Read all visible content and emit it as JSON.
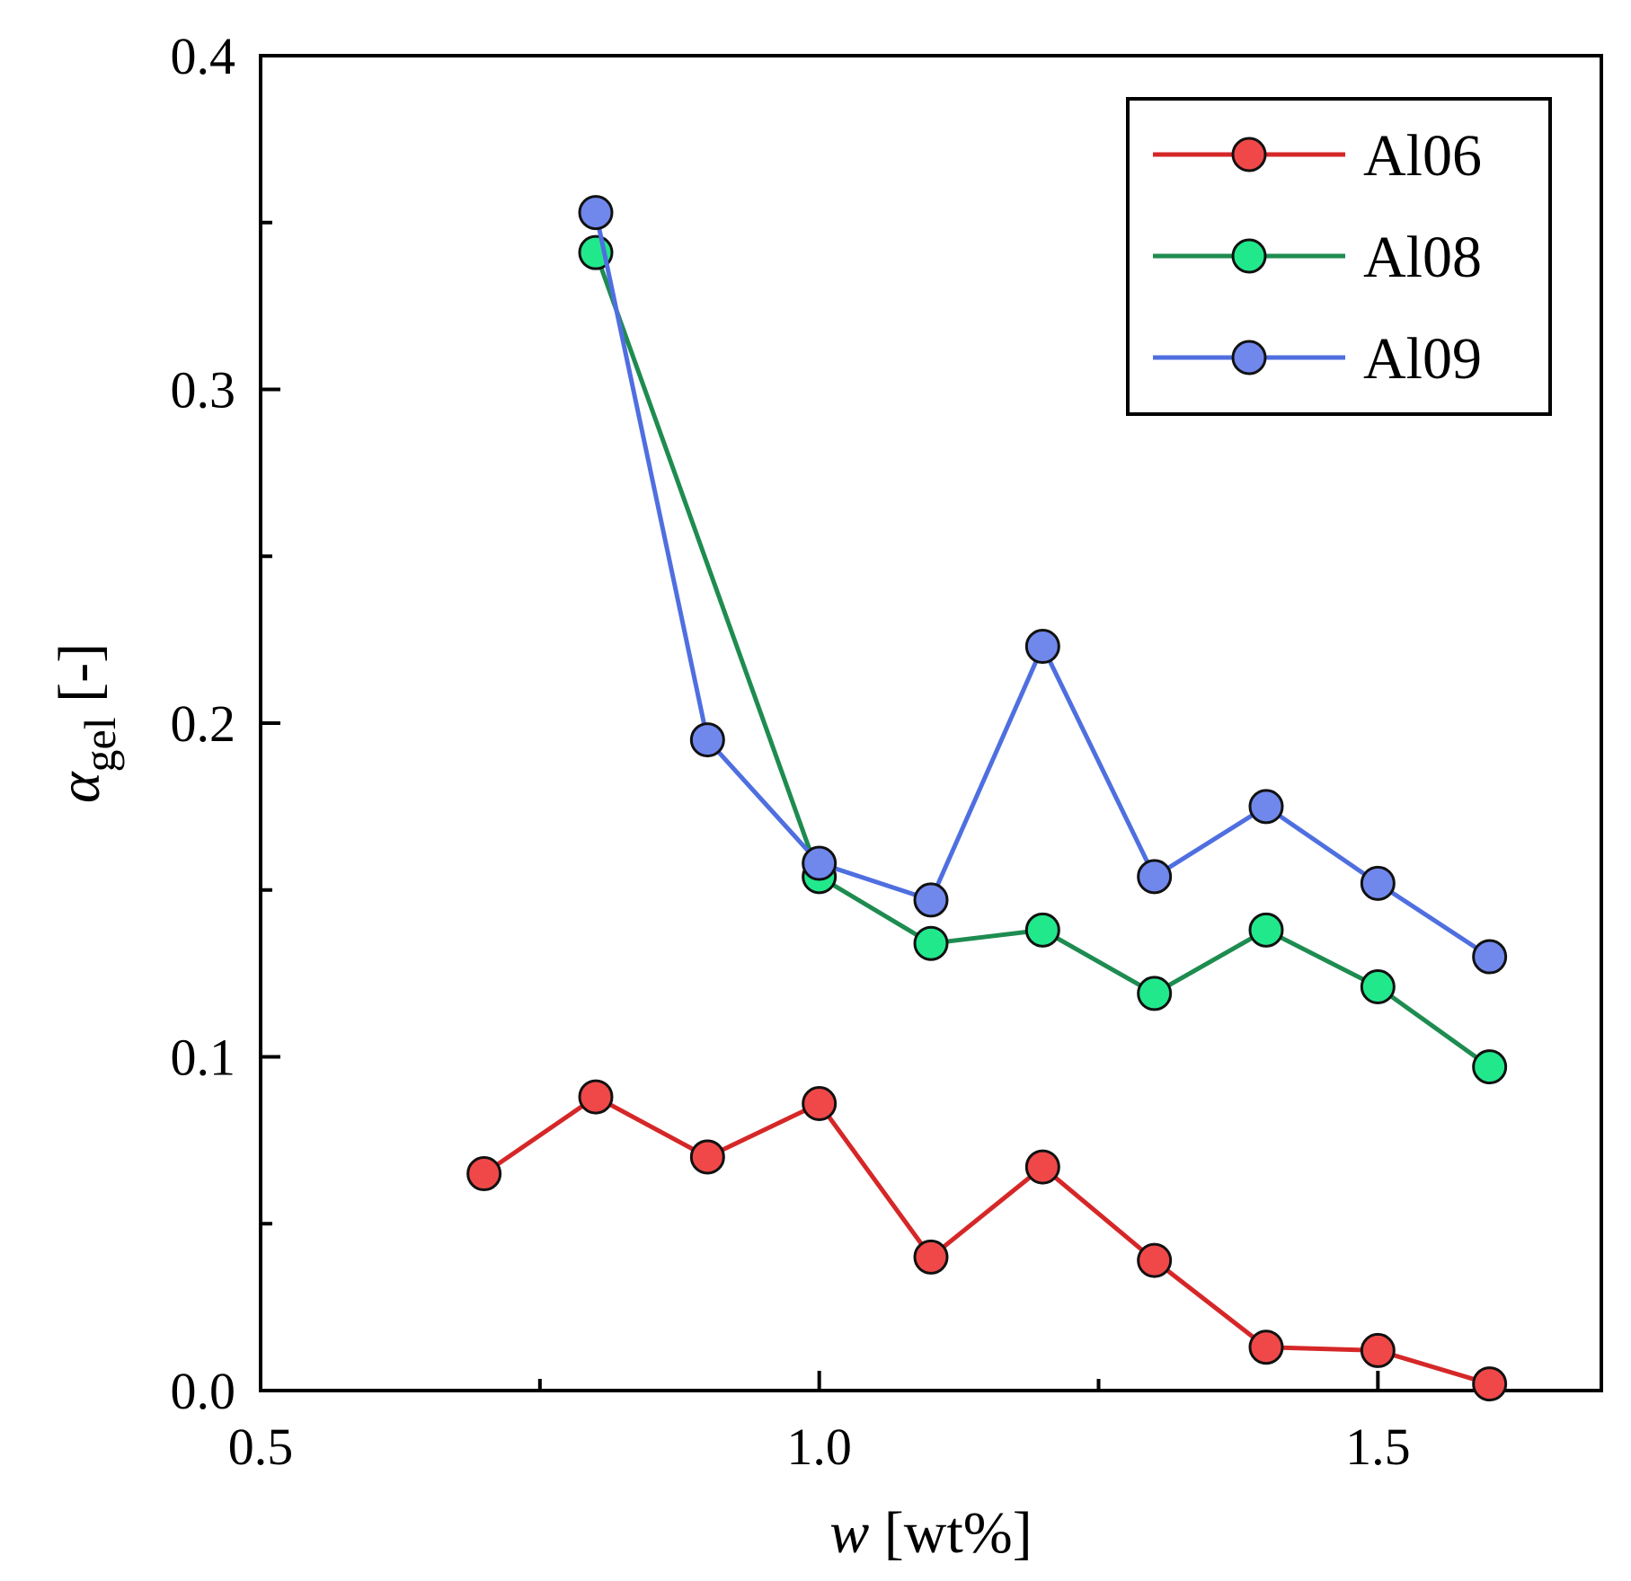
{
  "chart_data": {
    "type": "line",
    "title": "",
    "xlabel": {
      "var": "w",
      "unit": " [wt%]"
    },
    "ylabel": {
      "var": "α",
      "sub": "gel",
      "unit": " [-]"
    },
    "xlim": [
      0.5,
      1.7
    ],
    "ylim": [
      0.0,
      0.4
    ],
    "xticks": [
      0.5,
      1.0,
      1.5
    ],
    "xtick_labels": [
      "0.5",
      "1.0",
      "1.5"
    ],
    "xminor": [
      0.75,
      1.25
    ],
    "yticks": [
      0.0,
      0.1,
      0.2,
      0.3,
      0.4
    ],
    "ytick_labels": [
      "0.0",
      "0.1",
      "0.2",
      "0.3",
      "0.4"
    ],
    "yminor": [
      0.05,
      0.15,
      0.25,
      0.35
    ],
    "grid": false,
    "legend_position": "top-right",
    "series": [
      {
        "name": "Al06",
        "color": "#d62728",
        "marker_color": "#f04848",
        "x": [
          0.7,
          0.8,
          0.9,
          1.0,
          1.1,
          1.2,
          1.3,
          1.4,
          1.5,
          1.6
        ],
        "y": [
          0.065,
          0.088,
          0.07,
          0.086,
          0.04,
          0.067,
          0.039,
          0.013,
          0.012,
          0.002
        ]
      },
      {
        "name": "Al08",
        "color": "#1e8c50",
        "marker_color": "#22e88c",
        "x": [
          0.8,
          1.0,
          1.1,
          1.2,
          1.3,
          1.4,
          1.5,
          1.6
        ],
        "y": [
          0.341,
          0.154,
          0.134,
          0.138,
          0.119,
          0.138,
          0.121,
          0.097
        ]
      },
      {
        "name": "Al09",
        "color": "#4f6fe0",
        "marker_color": "#7088ec",
        "x": [
          0.8,
          0.9,
          1.0,
          1.1,
          1.2,
          1.3,
          1.4,
          1.5,
          1.6
        ],
        "y": [
          0.353,
          0.195,
          0.158,
          0.147,
          0.223,
          0.154,
          0.175,
          0.152,
          0.13
        ]
      }
    ]
  }
}
